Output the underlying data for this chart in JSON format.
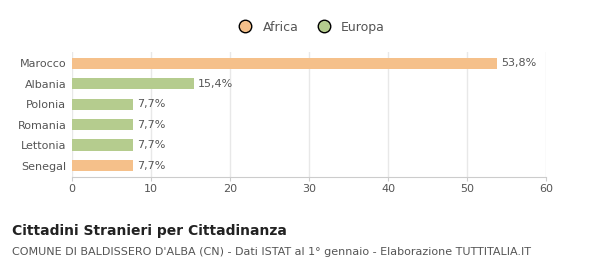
{
  "categories": [
    "Marocco",
    "Albania",
    "Polonia",
    "Romania",
    "Lettonia",
    "Senegal"
  ],
  "values": [
    53.8,
    15.4,
    7.7,
    7.7,
    7.7,
    7.7
  ],
  "labels": [
    "53,8%",
    "15,4%",
    "7,7%",
    "7,7%",
    "7,7%",
    "7,7%"
  ],
  "colors": [
    "#f5c08a",
    "#b5cc8e",
    "#b5cc8e",
    "#b5cc8e",
    "#b5cc8e",
    "#f5c08a"
  ],
  "legend": [
    {
      "label": "Africa",
      "color": "#f5c08a"
    },
    {
      "label": "Europa",
      "color": "#b5cc8e"
    }
  ],
  "xlim": [
    0,
    60
  ],
  "xticks": [
    0,
    10,
    20,
    30,
    40,
    50,
    60
  ],
  "title": "Cittadini Stranieri per Cittadinanza",
  "subtitle": "COMUNE DI BALDISSERO D'ALBA (CN) - Dati ISTAT al 1° gennaio - Elaborazione TUTTITALIA.IT",
  "bg_color": "#ffffff",
  "grid_color": "#e8e8e8",
  "title_fontsize": 10,
  "subtitle_fontsize": 8,
  "label_fontsize": 8,
  "tick_fontsize": 8,
  "bar_height": 0.55
}
